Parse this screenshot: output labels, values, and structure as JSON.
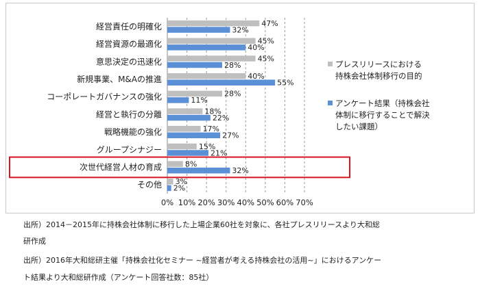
{
  "chart_data": {
    "type": "bar",
    "orientation": "horizontal",
    "categories": [
      "経営責任の明確化",
      "経営資源の最適化",
      "意思決定の迅速化",
      "新規事業、M&Aの推進",
      "コーポレートガバナンスの強化",
      "経営と執行の分離",
      "戦略機能の強化",
      "グループシナジー",
      "次世代経営人材の育成",
      "その他"
    ],
    "series": [
      {
        "name_lines": [
          "プレスリリースにおける",
          "持株会社体制移行の目的"
        ],
        "color": "#bfbfbf",
        "values": [
          47,
          45,
          45,
          40,
          28,
          18,
          17,
          15,
          8,
          3
        ],
        "labels": [
          "47%",
          "45%",
          "45%",
          "40%",
          "28%",
          "18%",
          "17%",
          "15%",
          "8%",
          "3%"
        ]
      },
      {
        "name_lines": [
          "アンケート結果（持株会社",
          "体制に移行することで解決",
          "したい課題）"
        ],
        "color": "#5b8fd6",
        "values": [
          32,
          40,
          28,
          55,
          11,
          22,
          27,
          21,
          32,
          2
        ],
        "labels": [
          "32%",
          "40%",
          "28%",
          "55%",
          "11%",
          "22%",
          "27%",
          "21%",
          "32%",
          "2%"
        ]
      }
    ],
    "xlim": [
      0,
      70
    ],
    "ticks": [
      "0%",
      "10%",
      "20%",
      "30%",
      "40%",
      "50%",
      "60%",
      "70%"
    ],
    "gridlines": "dashed vertical",
    "legend_position": "right",
    "highlight_category": "次世代経営人材の育成",
    "highlight_color": "#d9141e"
  },
  "sources": [
    "出所）2014－2015年に持株会社体制に移行した上場企業60社を対象に、各社プレスリリースより大和総",
    "研作成",
    "出所）2016年大和総研主催「持株会社化セミナー ~経営者が考える持株会社の活用~」におけるアンケー",
    "ト結果より大和総研作成（アンケート回答社数：85社）"
  ]
}
